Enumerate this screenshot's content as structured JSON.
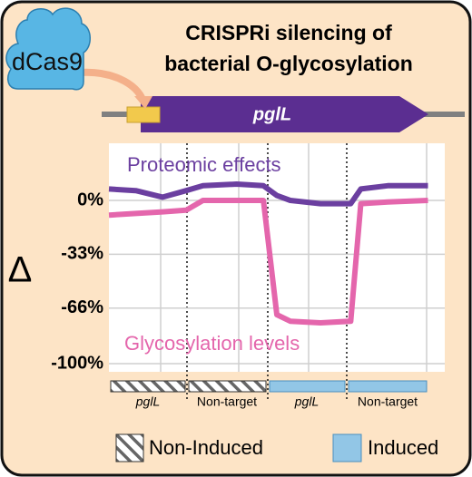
{
  "header": {
    "title": [
      "CRISPRi silencing of",
      "bacterial O-glycosylation"
    ],
    "protein": "dCas9",
    "gene": "pglL"
  },
  "chart_data": {
    "type": "line",
    "y_label": "Δ",
    "x": [
      0,
      8,
      16,
      23,
      28,
      38,
      46,
      50,
      54,
      63,
      72,
      75,
      83,
      95
    ],
    "xlim": [
      0,
      100
    ],
    "ylim": [
      -105,
      35
    ],
    "yticks": [
      {
        "value": 0,
        "label": "0%"
      },
      {
        "value": -33,
        "label": "-33%"
      },
      {
        "value": -66,
        "label": "-66%"
      },
      {
        "value": -100,
        "label": "-100%"
      }
    ],
    "grid": true,
    "series": [
      {
        "name": "Proteomic effects",
        "color": "#6b3fa0",
        "values": [
          7,
          6,
          2,
          6,
          9,
          10,
          9,
          3,
          0,
          -2,
          -2,
          7,
          9,
          9
        ]
      },
      {
        "name": "Glycosylation levels",
        "color": "#e466ac",
        "values": [
          -9,
          -8,
          -7,
          -6,
          0,
          0,
          0,
          -70,
          -74,
          -75,
          -74,
          -2,
          -1,
          0
        ]
      }
    ]
  },
  "groups": [
    "pglL",
    "Non-target",
    "pglL",
    "Non-target"
  ],
  "legend": [
    "Non-Induced",
    "Induced"
  ]
}
